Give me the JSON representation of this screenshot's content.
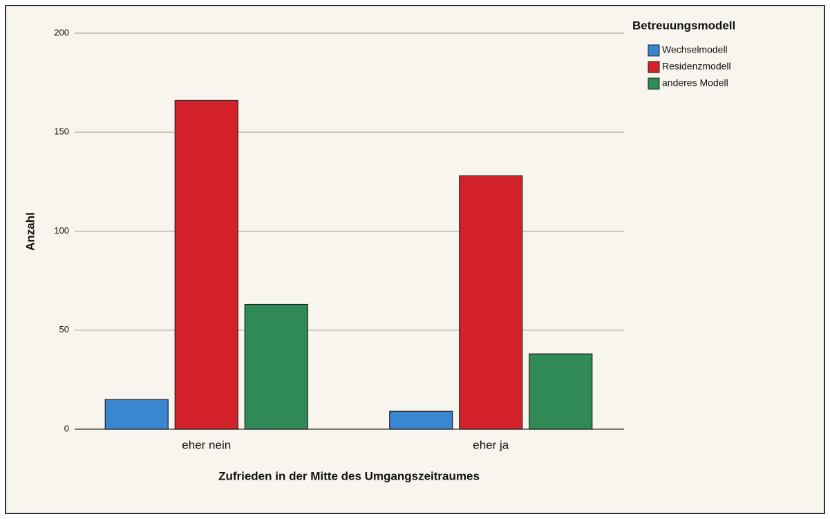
{
  "chart_data": {
    "type": "bar",
    "xlabel": "Zufrieden in der Mitte des Umgangszeitraumes",
    "ylabel": "Anzahl",
    "legend_title": "Betreuungsmodell",
    "categories": [
      "eher nein",
      "eher ja"
    ],
    "series": [
      {
        "name": "Wechselmodell",
        "color": "#3b86d1",
        "values": [
          15,
          9
        ]
      },
      {
        "name": "Residenzmodell",
        "color": "#d3222c",
        "values": [
          166,
          128
        ]
      },
      {
        "name": "anderes Modell",
        "color": "#2f8a55",
        "values": [
          63,
          38
        ]
      }
    ],
    "ylim": [
      0,
      200
    ],
    "yticks": [
      0,
      50,
      100,
      150,
      200
    ],
    "grid": true,
    "legend": "upper right"
  }
}
